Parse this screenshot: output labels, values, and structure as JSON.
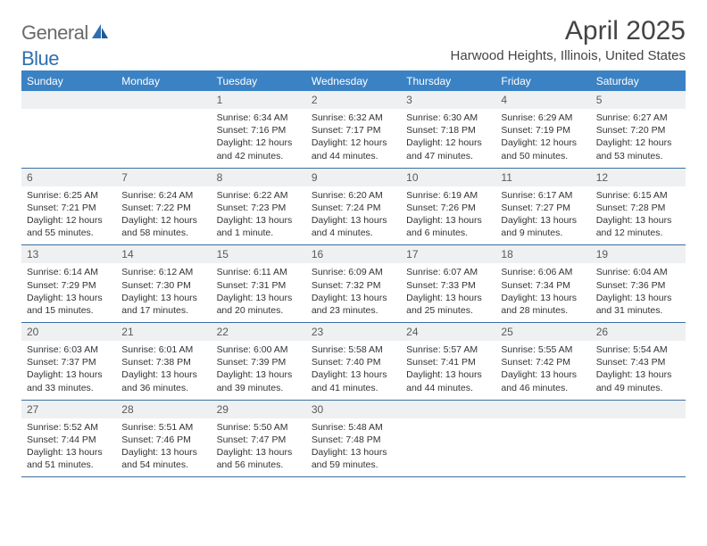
{
  "logo": {
    "general": "General",
    "blue": "Blue"
  },
  "title": "April 2025",
  "location": "Harwood Heights, Illinois, United States",
  "colors": {
    "header_bg": "#3b82c4",
    "header_text": "#ffffff",
    "daynum_bg": "#eef0f1",
    "border": "#3b6fa0",
    "logo_gray": "#6a6a6a",
    "logo_blue": "#2f6fb0"
  },
  "weekdays": [
    "Sunday",
    "Monday",
    "Tuesday",
    "Wednesday",
    "Thursday",
    "Friday",
    "Saturday"
  ],
  "first_weekday": 2,
  "days_in_month": 30,
  "days": {
    "1": {
      "sunrise": "6:34 AM",
      "sunset": "7:16 PM",
      "daylight": "12 hours and 42 minutes."
    },
    "2": {
      "sunrise": "6:32 AM",
      "sunset": "7:17 PM",
      "daylight": "12 hours and 44 minutes."
    },
    "3": {
      "sunrise": "6:30 AM",
      "sunset": "7:18 PM",
      "daylight": "12 hours and 47 minutes."
    },
    "4": {
      "sunrise": "6:29 AM",
      "sunset": "7:19 PM",
      "daylight": "12 hours and 50 minutes."
    },
    "5": {
      "sunrise": "6:27 AM",
      "sunset": "7:20 PM",
      "daylight": "12 hours and 53 minutes."
    },
    "6": {
      "sunrise": "6:25 AM",
      "sunset": "7:21 PM",
      "daylight": "12 hours and 55 minutes."
    },
    "7": {
      "sunrise": "6:24 AM",
      "sunset": "7:22 PM",
      "daylight": "12 hours and 58 minutes."
    },
    "8": {
      "sunrise": "6:22 AM",
      "sunset": "7:23 PM",
      "daylight": "13 hours and 1 minute."
    },
    "9": {
      "sunrise": "6:20 AM",
      "sunset": "7:24 PM",
      "daylight": "13 hours and 4 minutes."
    },
    "10": {
      "sunrise": "6:19 AM",
      "sunset": "7:26 PM",
      "daylight": "13 hours and 6 minutes."
    },
    "11": {
      "sunrise": "6:17 AM",
      "sunset": "7:27 PM",
      "daylight": "13 hours and 9 minutes."
    },
    "12": {
      "sunrise": "6:15 AM",
      "sunset": "7:28 PM",
      "daylight": "13 hours and 12 minutes."
    },
    "13": {
      "sunrise": "6:14 AM",
      "sunset": "7:29 PM",
      "daylight": "13 hours and 15 minutes."
    },
    "14": {
      "sunrise": "6:12 AM",
      "sunset": "7:30 PM",
      "daylight": "13 hours and 17 minutes."
    },
    "15": {
      "sunrise": "6:11 AM",
      "sunset": "7:31 PM",
      "daylight": "13 hours and 20 minutes."
    },
    "16": {
      "sunrise": "6:09 AM",
      "sunset": "7:32 PM",
      "daylight": "13 hours and 23 minutes."
    },
    "17": {
      "sunrise": "6:07 AM",
      "sunset": "7:33 PM",
      "daylight": "13 hours and 25 minutes."
    },
    "18": {
      "sunrise": "6:06 AM",
      "sunset": "7:34 PM",
      "daylight": "13 hours and 28 minutes."
    },
    "19": {
      "sunrise": "6:04 AM",
      "sunset": "7:36 PM",
      "daylight": "13 hours and 31 minutes."
    },
    "20": {
      "sunrise": "6:03 AM",
      "sunset": "7:37 PM",
      "daylight": "13 hours and 33 minutes."
    },
    "21": {
      "sunrise": "6:01 AM",
      "sunset": "7:38 PM",
      "daylight": "13 hours and 36 minutes."
    },
    "22": {
      "sunrise": "6:00 AM",
      "sunset": "7:39 PM",
      "daylight": "13 hours and 39 minutes."
    },
    "23": {
      "sunrise": "5:58 AM",
      "sunset": "7:40 PM",
      "daylight": "13 hours and 41 minutes."
    },
    "24": {
      "sunrise": "5:57 AM",
      "sunset": "7:41 PM",
      "daylight": "13 hours and 44 minutes."
    },
    "25": {
      "sunrise": "5:55 AM",
      "sunset": "7:42 PM",
      "daylight": "13 hours and 46 minutes."
    },
    "26": {
      "sunrise": "5:54 AM",
      "sunset": "7:43 PM",
      "daylight": "13 hours and 49 minutes."
    },
    "27": {
      "sunrise": "5:52 AM",
      "sunset": "7:44 PM",
      "daylight": "13 hours and 51 minutes."
    },
    "28": {
      "sunrise": "5:51 AM",
      "sunset": "7:46 PM",
      "daylight": "13 hours and 54 minutes."
    },
    "29": {
      "sunrise": "5:50 AM",
      "sunset": "7:47 PM",
      "daylight": "13 hours and 56 minutes."
    },
    "30": {
      "sunrise": "5:48 AM",
      "sunset": "7:48 PM",
      "daylight": "13 hours and 59 minutes."
    }
  }
}
